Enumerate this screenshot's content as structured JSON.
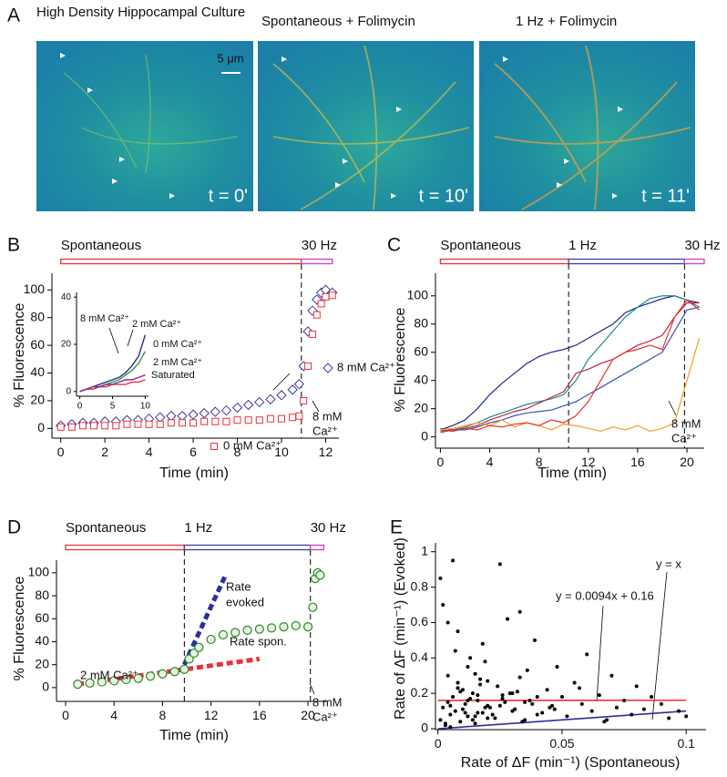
{
  "panel_a": {
    "label": "A",
    "title": "High Density Hippocampal Culture",
    "scale_bar": "5 μm",
    "images": [
      {
        "time": "t = 0'"
      },
      {
        "title": "Spontaneous + Folimycin",
        "time": "t = 10'"
      },
      {
        "title": "1 Hz + Folimycin",
        "time": "t = 11'"
      }
    ]
  },
  "chart_data": [
    {
      "panel": "B",
      "type": "scatter",
      "xlabel": "Time (min)",
      "ylabel": "% Fluorescence",
      "xlim": [
        -0.4,
        12.6
      ],
      "ylim": [
        -7,
        112
      ],
      "xticks": [
        0,
        2,
        4,
        6,
        8,
        10,
        12
      ],
      "yticks": [
        0,
        20,
        40,
        60,
        80,
        100
      ],
      "protocol": [
        {
          "label": "Spontaneous",
          "start": 0,
          "end": 10.9,
          "color": "#e8313a"
        },
        {
          "label": "30 Hz",
          "start": 10.9,
          "end": 12.3,
          "color": "#d23cc0"
        }
      ],
      "x": [
        0,
        0.5,
        1,
        1.5,
        2,
        2.5,
        3,
        3.5,
        4,
        4.5,
        5,
        5.5,
        6,
        6.5,
        7,
        7.5,
        8,
        8.5,
        9,
        9.5,
        10,
        10.5,
        10.8,
        11,
        11.2,
        11.4,
        11.6,
        11.8,
        12,
        12.3
      ],
      "series": [
        {
          "name": "8 mM Ca²⁺",
          "color": "#3b3b9b",
          "marker": "diamond",
          "values": [
            2,
            3,
            4,
            4,
            5,
            5,
            6,
            6,
            7,
            8,
            9,
            9,
            10,
            11,
            12,
            13,
            15,
            17,
            19,
            21,
            24,
            28,
            32,
            45,
            70,
            85,
            93,
            98,
            100,
            98
          ]
        },
        {
          "name": "0 mM Ca²⁺",
          "color": "#e8313a",
          "marker": "square",
          "values": [
            1,
            1,
            2,
            2,
            2,
            2,
            3,
            3,
            3,
            3,
            4,
            4,
            4,
            5,
            5,
            5,
            6,
            6,
            6,
            7,
            7,
            8,
            9,
            20,
            45,
            68,
            82,
            90,
            95,
            96
          ]
        }
      ],
      "annotations": [
        {
          "lines": [
            "8 mM",
            "Ca²⁺"
          ]
        }
      ],
      "inset": {
        "type": "line",
        "xlim": [
          -0.5,
          10.5
        ],
        "ylim": [
          -2,
          42
        ],
        "xticks": [
          0,
          5,
          10
        ],
        "yticks": [
          0,
          20,
          40
        ],
        "x": [
          0,
          1,
          2,
          3,
          4,
          5,
          6,
          7,
          8,
          9,
          10
        ],
        "series": [
          {
            "name": "8 mM Ca²⁺",
            "color": "#2c2c8c",
            "values": [
              0,
              1,
              2,
              3,
              4,
              5,
              6,
              8,
              11,
              15,
              24
            ]
          },
          {
            "name": "2 mM Ca²⁺",
            "color": "#2a9a3a",
            "values": [
              0,
              1,
              1,
              2,
              3,
              4,
              5,
              7,
              9,
              12,
              17
            ]
          },
          {
            "name": "0 mM Ca²⁺",
            "color": "#e8313a",
            "values": [
              0,
              1,
              1,
              2,
              2,
              3,
              3,
              3,
              4,
              4,
              5
            ]
          },
          {
            "name": "2 mM Ca²⁺",
            "color": "#8a2b9a",
            "values": [
              0,
              1,
              2,
              2,
              3,
              3,
              4,
              5,
              5,
              6,
              7
            ]
          }
        ],
        "annotations": [
          {
            "lines": [
              "Saturated"
            ]
          }
        ]
      }
    },
    {
      "panel": "C",
      "type": "line",
      "xlabel": "Time (min)",
      "ylabel": "% Fluorescence",
      "xlim": [
        -0.4,
        21.4
      ],
      "ylim": [
        -8,
        116
      ],
      "xticks": [
        0,
        4,
        8,
        12,
        16,
        20
      ],
      "yticks": [
        0,
        20,
        40,
        60,
        80,
        100
      ],
      "protocol": [
        {
          "label": "Spontaneous",
          "start": 0,
          "end": 10.4,
          "color": "#e8313a"
        },
        {
          "label": "1 Hz",
          "start": 10.4,
          "end": 19.8,
          "color": "#3b3bb0"
        },
        {
          "label": "30 Hz",
          "start": 19.8,
          "end": 21.4,
          "color": "#d23cc0"
        }
      ],
      "x": [
        0,
        1,
        2,
        3,
        4,
        5,
        6,
        7,
        8,
        9,
        10,
        11,
        12,
        13,
        14,
        15,
        16,
        17,
        18,
        19,
        20,
        21
      ],
      "series": [
        {
          "color": "#1f2a80",
          "values": [
            5,
            8,
            12,
            20,
            30,
            38,
            45,
            52,
            57,
            60,
            62,
            65,
            70,
            75,
            80,
            88,
            92,
            95,
            98,
            100,
            97,
            95
          ]
        },
        {
          "color": "#1d8a8a",
          "values": [
            3,
            5,
            7,
            10,
            14,
            17,
            20,
            23,
            25,
            27,
            30,
            40,
            55,
            65,
            75,
            85,
            92,
            98,
            100,
            100,
            97,
            92
          ]
        },
        {
          "color": "#c0244a",
          "values": [
            5,
            4,
            6,
            8,
            12,
            15,
            18,
            20,
            24,
            28,
            32,
            45,
            48,
            52,
            55,
            60,
            65,
            68,
            72,
            85,
            95,
            95
          ]
        },
        {
          "color": "#3a55b0",
          "values": [
            6,
            5,
            5,
            7,
            10,
            12,
            15,
            17,
            18,
            19,
            22,
            25,
            30,
            35,
            40,
            45,
            50,
            55,
            60,
            75,
            90,
            92
          ]
        },
        {
          "color": "#f0a020",
          "values": [
            5,
            6,
            8,
            10,
            8,
            12,
            7,
            10,
            8,
            5,
            9,
            8,
            6,
            4,
            7,
            5,
            8,
            4,
            6,
            10,
            40,
            70
          ]
        },
        {
          "color": "#e8312a",
          "values": [
            4,
            5,
            6,
            5,
            8,
            7,
            9,
            10,
            8,
            12,
            10,
            15,
            25,
            40,
            55,
            60,
            62,
            65,
            62,
            85,
            97,
            90
          ]
        }
      ],
      "annotations": [
        {
          "lines": [
            "8 mM",
            "Ca²⁺"
          ]
        }
      ]
    },
    {
      "panel": "D",
      "type": "scatter",
      "xlabel": "Time (min)",
      "ylabel": "% Fluorescence",
      "xlim": [
        -0.75,
        21.5
      ],
      "ylim": [
        -12,
        111
      ],
      "xticks": [
        0,
        4,
        8,
        12,
        16,
        20
      ],
      "yticks": [
        0,
        20,
        40,
        60,
        80,
        100
      ],
      "protocol": [
        {
          "label": "Spontaneous",
          "start": 0,
          "end": 9.8,
          "color": "#e8313a"
        },
        {
          "label": "1 Hz",
          "start": 9.8,
          "end": 20.2,
          "color": "#3b3bb0"
        },
        {
          "label": "30 Hz",
          "start": 20.2,
          "end": 21.3,
          "color": "#d23cc0"
        }
      ],
      "x": [
        1,
        2,
        3,
        4,
        5,
        6,
        7,
        8,
        9,
        9.8,
        10.2,
        10.6,
        11,
        12,
        13,
        14,
        15,
        16,
        17,
        18,
        19,
        20,
        20.4,
        20.6,
        20.8,
        21
      ],
      "series": [
        {
          "color": "#2a8a2a",
          "marker": "circle",
          "values": [
            3,
            4,
            5,
            6,
            7,
            8,
            10,
            12,
            14,
            16,
            25,
            30,
            35,
            42,
            46,
            48,
            50,
            51,
            52,
            53,
            54,
            53,
            70,
            95,
            100,
            98
          ]
        }
      ],
      "fits": [
        {
          "label_lines": [
            "Rate",
            "evoked"
          ],
          "color": "#2b2f9a",
          "dash": true,
          "x": [
            9.8,
            13.2
          ],
          "values": [
            20,
            98
          ]
        },
        {
          "label_lines": [
            "Rate spon."
          ],
          "color": "#e8313a",
          "dash": true,
          "x": [
            1,
            16
          ],
          "values": [
            3,
            25
          ]
        }
      ],
      "annotations": [
        {
          "lines": [
            "2 mM Ca²⁺"
          ]
        },
        {
          "lines": [
            "8 mM",
            "Ca²⁺"
          ]
        }
      ]
    },
    {
      "panel": "E",
      "type": "scatter",
      "xlabel": "Rate of ΔF (min⁻¹) (Spontaneous)",
      "ylabel": "Rate of ΔF (min⁻¹) (Evoked)",
      "xlim": [
        -0.001,
        0.108
      ],
      "ylim": [
        -0.005,
        1.05
      ],
      "xticks": [
        0,
        0.05,
        0.1
      ],
      "yticks": [
        0,
        0.2,
        0.4,
        0.6,
        0.8,
        1
      ],
      "x": [
        0.001,
        0.002,
        0.003,
        0.004,
        0.005,
        0.006,
        0.007,
        0.008,
        0.009,
        0.01,
        0.011,
        0.012,
        0.013,
        0.014,
        0.015,
        0.016,
        0.017,
        0.018,
        0.019,
        0.02,
        0.002,
        0.004,
        0.006,
        0.008,
        0.01,
        0.012,
        0.014,
        0.016,
        0.018,
        0.02,
        0.022,
        0.024,
        0.026,
        0.028,
        0.03,
        0.032,
        0.034,
        0.036,
        0.038,
        0.04,
        0.001,
        0.003,
        0.005,
        0.007,
        0.009,
        0.011,
        0.013,
        0.015,
        0.017,
        0.019,
        0.021,
        0.023,
        0.025,
        0.027,
        0.029,
        0.031,
        0.033,
        0.035,
        0.037,
        0.039,
        0.042,
        0.044,
        0.046,
        0.048,
        0.05,
        0.052,
        0.055,
        0.058,
        0.06,
        0.062,
        0.065,
        0.068,
        0.07,
        0.072,
        0.075,
        0.078,
        0.08,
        0.083,
        0.086,
        0.09,
        0.093,
        0.097,
        0.1,
        0.004,
        0.008,
        0.012,
        0.016,
        0.02,
        0.025,
        0.03,
        0.035,
        0.04,
        0.045,
        0.005,
        0.015,
        0.026,
        0.033,
        0.047,
        0.057,
        0.067
      ],
      "series": [
        {
          "color": "#000000",
          "marker": "dot",
          "values": [
            0.05,
            0.12,
            0.02,
            0.3,
            0.08,
            0.18,
            0.1,
            0.55,
            0.04,
            0.22,
            0.14,
            0.07,
            0.4,
            0.2,
            0.03,
            0.16,
            0.28,
            0.09,
            0.12,
            0.06,
            0.7,
            0.15,
            0.95,
            0.26,
            0.11,
            0.35,
            0.05,
            0.19,
            0.48,
            0.13,
            0.08,
            0.24,
            0.17,
            0.62,
            0.1,
            0.21,
            0.04,
            0.33,
            0.14,
            0.18,
            0.85,
            0.03,
            0.13,
            0.44,
            0.21,
            0.09,
            0.17,
            0.07,
            0.25,
            0.38,
            0.12,
            0.06,
            0.93,
            0.15,
            0.2,
            0.11,
            0.29,
            0.05,
            0.16,
            0.5,
            0.09,
            0.22,
            0.13,
            0.35,
            0.18,
            0.07,
            0.26,
            0.14,
            0.42,
            0.1,
            0.19,
            0.05,
            0.3,
            0.12,
            0.16,
            0.08,
            0.24,
            0.11,
            0.18,
            0.14,
            0.06,
            0.1,
            0.07,
            0.6,
            0.23,
            0.16,
            0.09,
            0.27,
            0.13,
            0.2,
            0.15,
            0.08,
            0.12,
            0.01,
            0.31,
            0.19,
            0.66,
            0.11,
            0.23,
            0.04
          ]
        }
      ],
      "fits": [
        {
          "label_lines": [
            "y = 0.0094x + 0.16"
          ],
          "color": "#e8313a",
          "dash": false,
          "x": [
            0,
            0.1
          ],
          "values": [
            0.16,
            0.16094
          ]
        },
        {
          "label_lines": [
            "y = x"
          ],
          "color": "#2b2fa0",
          "dash": false,
          "x": [
            0,
            0.1
          ],
          "values": [
            0,
            0.1
          ]
        }
      ]
    }
  ]
}
